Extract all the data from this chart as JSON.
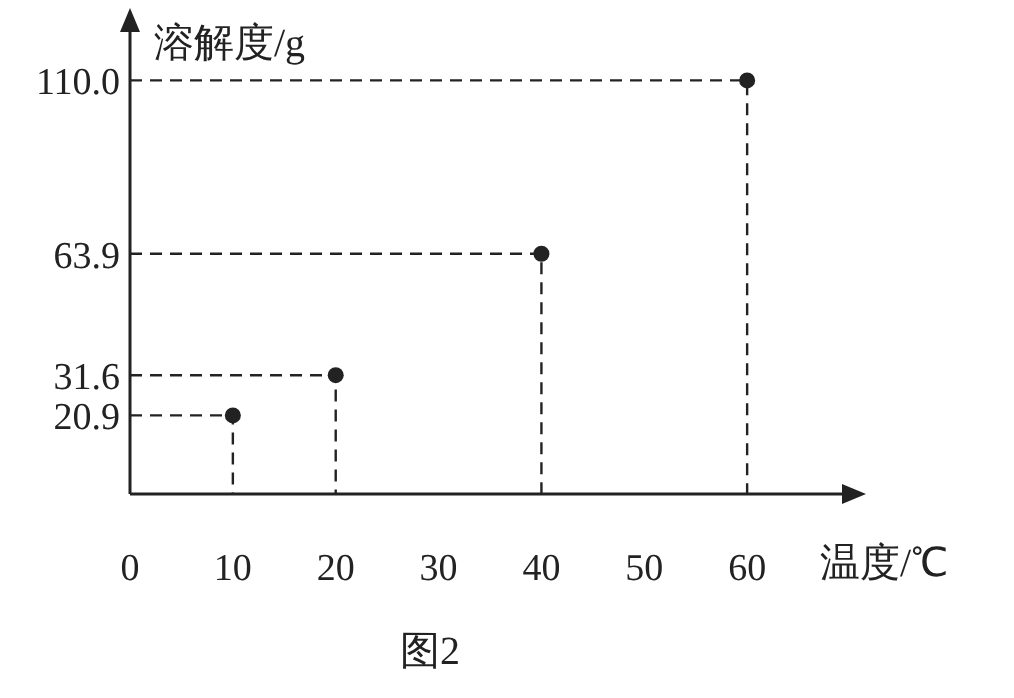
{
  "chart_data": {
    "type": "scatter",
    "xlabel": "温度/℃",
    "ylabel": "溶解度/g",
    "annotations": [
      "图2"
    ],
    "x": [
      10,
      20,
      40,
      60
    ],
    "series": [
      {
        "type": "line",
        "line_style": "dashed",
        "marker": "none",
        "color": "#222222",
        "x": [
          0,
          10,
          10
        ],
        "values": [
          20.9,
          20.9,
          0
        ]
      },
      {
        "type": "line",
        "line_style": "dashed",
        "marker": "none",
        "color": "#222222",
        "x": [
          0,
          20,
          20
        ],
        "values": [
          31.6,
          31.6,
          0
        ]
      },
      {
        "type": "line",
        "line_style": "dashed",
        "marker": "none",
        "color": "#222222",
        "x": [
          0,
          40,
          40
        ],
        "values": [
          63.9,
          63.9,
          0
        ]
      },
      {
        "type": "line",
        "line_style": "dashed",
        "marker": "none",
        "color": "#222222",
        "x": [
          0,
          60,
          60
        ],
        "values": [
          110.0,
          110.0,
          0
        ]
      },
      {
        "marker": "circle",
        "color": "#222222",
        "values": [
          20.9,
          31.6,
          63.9,
          110.0
        ]
      }
    ],
    "xlim": [
      0,
      70
    ],
    "xticks": [
      0,
      10,
      20,
      30,
      40,
      50,
      60
    ],
    "ylim": [
      0,
      125
    ],
    "yticks": [
      20.9,
      31.6,
      63.9,
      {
        "value": 110.0,
        "label": "110.0"
      }
    ],
    "grid": false
  }
}
